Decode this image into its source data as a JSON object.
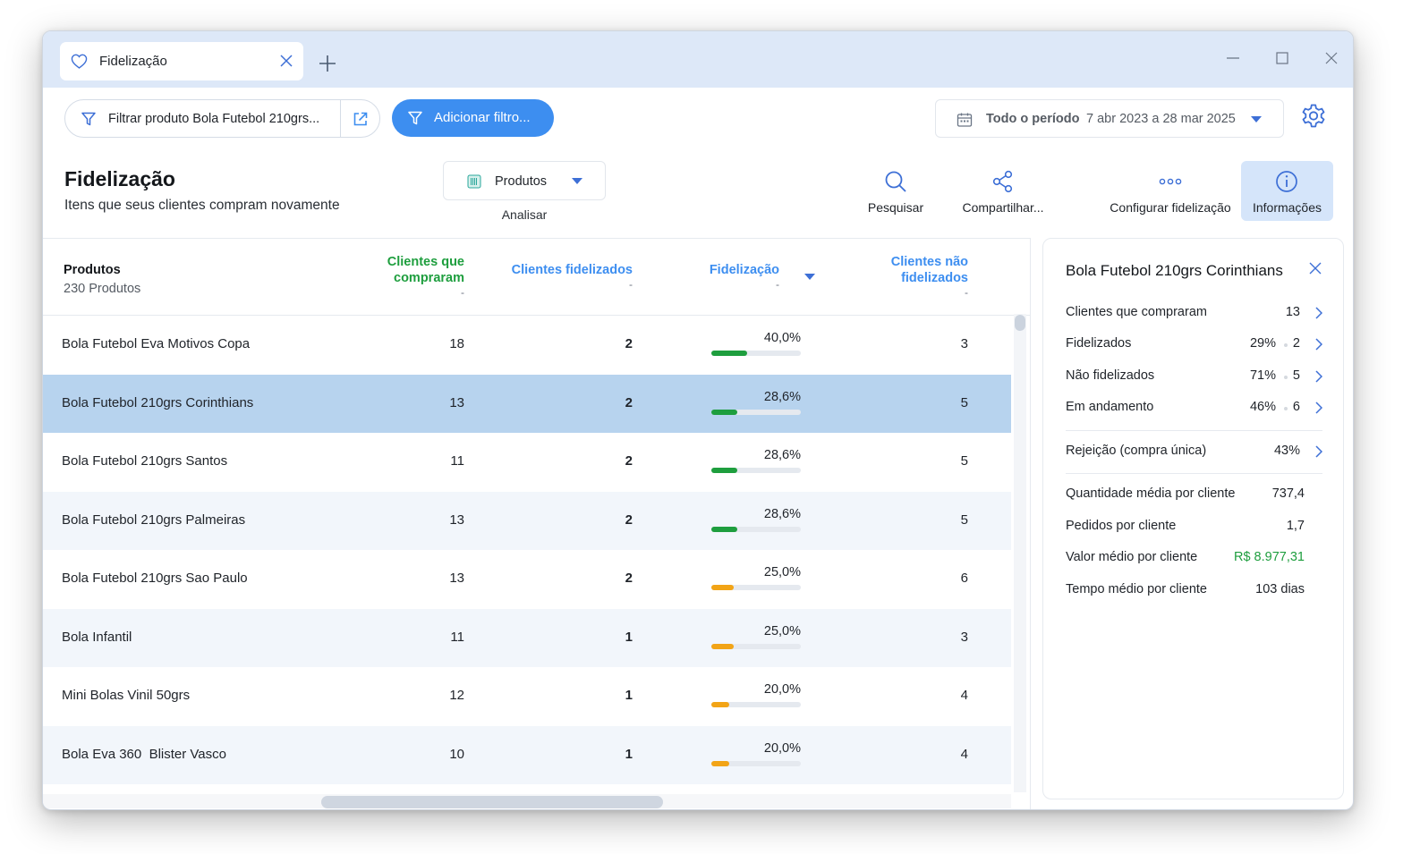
{
  "tab": {
    "title": "Fidelização"
  },
  "toolbar": {
    "filter_label": "Filtrar produto Bola Futebol 210grs...",
    "add_filter_label": "Adicionar filtro...",
    "period_label": "Todo o período",
    "period_range": "7 abr 2023 a 28 mar 2025"
  },
  "header": {
    "title": "Fidelização",
    "subtitle": "Itens que seus clientes compram novamente",
    "analyze_value": "Produtos",
    "analyze_label": "Analisar"
  },
  "actions": {
    "search": "Pesquisar",
    "share": "Compartilhar...",
    "configure": "Configurar fidelização",
    "info": "Informações"
  },
  "table": {
    "col_product": "Produtos",
    "col_product_sub": "230 Produtos",
    "col_buyers_1": "Clientes que",
    "col_buyers_2": "compraram",
    "col_loyal": "Clientes fidelizados",
    "col_loyalty": "Fidelização",
    "col_notloyal_1": "Clientes não",
    "col_notloyal_2": "fidelizados",
    "col_sub_dash": "-",
    "colors": {
      "green_header": "#1e9e3e",
      "blue_header": "#3d8ef0",
      "bar_green": "#1e9e3e",
      "bar_orange": "#f2a416",
      "selected_row": "#b7d3ee",
      "alt_row": "#f2f6fb"
    },
    "rows": [
      {
        "name": "Bola Futebol Eva Motivos Copa",
        "buyers": "18",
        "loyal": "2",
        "loyalty": "40,0%",
        "loyalty_value": 40.0,
        "bar_color": "green",
        "not_loyal": "3"
      },
      {
        "name": "Bola Futebol 210grs Corinthians",
        "buyers": "13",
        "loyal": "2",
        "loyalty": "28,6%",
        "loyalty_value": 28.6,
        "bar_color": "green",
        "not_loyal": "5"
      },
      {
        "name": "Bola Futebol 210grs Santos",
        "buyers": "11",
        "loyal": "2",
        "loyalty": "28,6%",
        "loyalty_value": 28.6,
        "bar_color": "green",
        "not_loyal": "5"
      },
      {
        "name": "Bola Futebol 210grs Palmeiras",
        "buyers": "13",
        "loyal": "2",
        "loyalty": "28,6%",
        "loyalty_value": 28.6,
        "bar_color": "green",
        "not_loyal": "5"
      },
      {
        "name": "Bola Futebol 210grs Sao Paulo",
        "buyers": "13",
        "loyal": "2",
        "loyalty": "25,0%",
        "loyalty_value": 25.0,
        "bar_color": "orange",
        "not_loyal": "6"
      },
      {
        "name": "Bola Infantil",
        "buyers": "11",
        "loyal": "1",
        "loyalty": "25,0%",
        "loyalty_value": 25.0,
        "bar_color": "orange",
        "not_loyal": "3"
      },
      {
        "name": "Mini Bolas Vinil 50grs",
        "buyers": "12",
        "loyal": "1",
        "loyalty": "20,0%",
        "loyalty_value": 20.0,
        "bar_color": "orange",
        "not_loyal": "4"
      },
      {
        "name": "Bola Eva 360  Blister Vasco",
        "buyers": "10",
        "loyal": "1",
        "loyalty": "20,0%",
        "loyalty_value": 20.0,
        "bar_color": "orange",
        "not_loyal": "4"
      }
    ]
  },
  "panel": {
    "title": "Bola Futebol 210grs Corinthians",
    "buyers_label": "Clientes que compraram",
    "buyers_value": "13",
    "loyal_label": "Fidelizados",
    "loyal_pct": "29%",
    "loyal_value": "2",
    "notloyal_label": "Não fidelizados",
    "notloyal_pct": "71%",
    "notloyal_value": "5",
    "progress_label": "Em andamento",
    "progress_pct": "46%",
    "progress_value": "6",
    "rejection_label": "Rejeição (compra única)",
    "rejection_pct": "43%",
    "avg_qty_label": "Quantidade média por cliente",
    "avg_qty_value": "737,4",
    "orders_label": "Pedidos por cliente",
    "orders_value": "1,7",
    "avg_value_label": "Valor médio por cliente",
    "avg_value_value": "R$ 8.977,31",
    "avg_time_label": "Tempo médio por cliente",
    "avg_time_value": "103 dias",
    "money_color": "#1e9e3e"
  }
}
